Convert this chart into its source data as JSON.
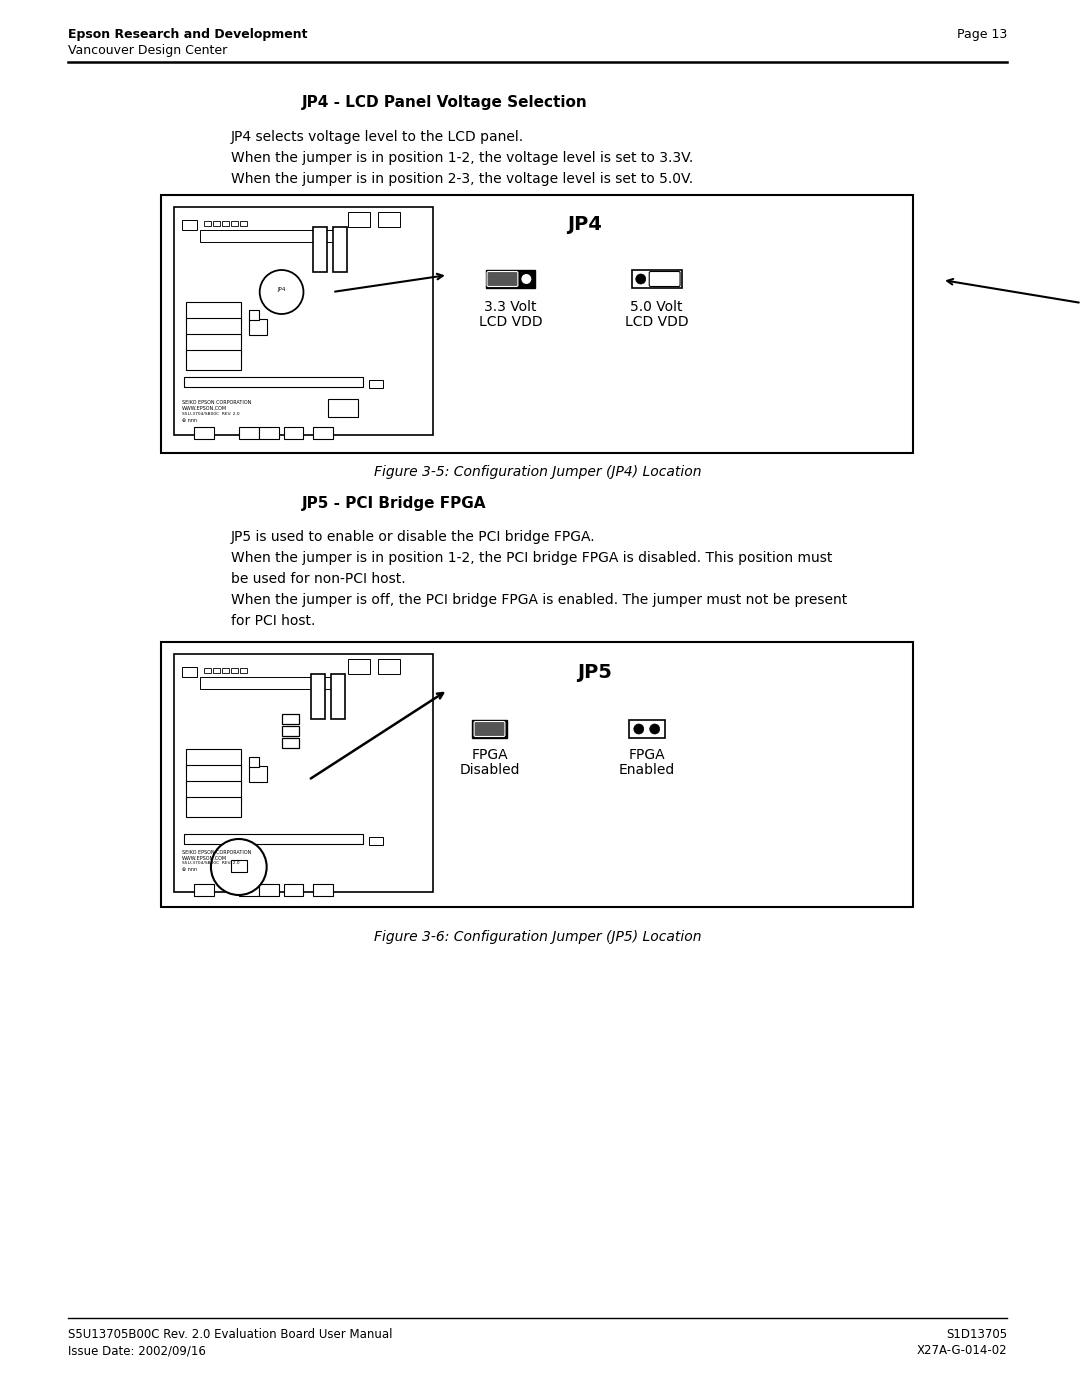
{
  "page_title_left_bold": "Epson Research and Development",
  "page_title_left_normal": "Vancouver Design Center",
  "page_number": "Page 13",
  "footer_left_line1": "S5U13705B00C Rev. 2.0 Evaluation Board User Manual",
  "footer_left_line2": "Issue Date: 2002/09/16",
  "footer_right_line1": "S1D13705",
  "footer_right_line2": "X27A-G-014-02",
  "section1_title": "JP4 - LCD Panel Voltage Selection",
  "section1_para_lines": [
    "JP4 selects voltage level to the LCD panel.",
    "When the jumper is in position 1-2, the voltage level is set to 3.3V.",
    "When the jumper is in position 2-3, the voltage level is set to 5.0V."
  ],
  "fig1_label": "JP4",
  "fig1_left_label_line1": "3.3 Volt",
  "fig1_left_label_line2": "LCD VDD",
  "fig1_right_label_line1": "5.0 Volt",
  "fig1_right_label_line2": "LCD VDD",
  "fig1_caption": "Figure 3-5: Configuration Jumper (JP4) Location",
  "section2_title": "JP5 - PCI Bridge FPGA",
  "section2_para_lines": [
    "JP5 is used to enable or disable the PCI bridge FPGA.",
    "When the jumper is in position 1-2, the PCI bridge FPGA is disabled. This position must",
    "be used for non-PCI host.",
    "When the jumper is off, the PCI bridge FPGA is enabled. The jumper must not be present",
    "for PCI host."
  ],
  "fig2_label": "JP5",
  "fig2_left_label_line1": "FPGA",
  "fig2_left_label_line2": "Disabled",
  "fig2_right_label_line1": "FPGA",
  "fig2_right_label_line2": "Enabled",
  "fig2_caption": "Figure 3-6: Configuration Jumper (JP5) Location",
  "bg_color": "#ffffff",
  "text_color": "#000000"
}
